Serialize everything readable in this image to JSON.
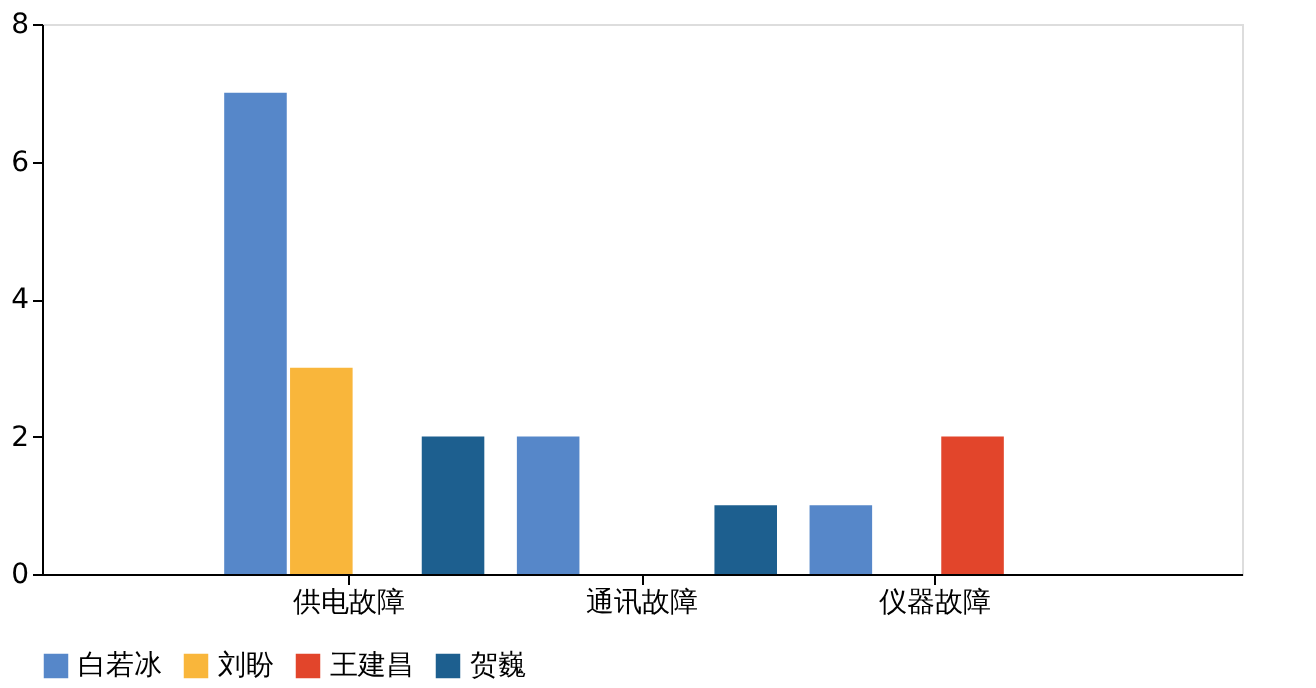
{
  "chart_data": {
    "type": "bar",
    "categories": [
      "供电故障",
      "通讯故障",
      "仪器故障"
    ],
    "series": [
      {
        "name": "白若冰",
        "color": "#5687c9",
        "values": [
          7,
          2,
          1
        ]
      },
      {
        "name": "刘盼",
        "color": "#f9b63b",
        "values": [
          3,
          0,
          0
        ]
      },
      {
        "name": "王建昌",
        "color": "#e2452b",
        "values": [
          0,
          0,
          2
        ]
      },
      {
        "name": "贺巍",
        "color": "#1d5f8f",
        "values": [
          2,
          1,
          0
        ]
      }
    ],
    "ylim": [
      0,
      8
    ],
    "yticks": [
      0,
      2,
      4,
      6,
      8
    ],
    "grid": false,
    "legend": "bottom"
  }
}
